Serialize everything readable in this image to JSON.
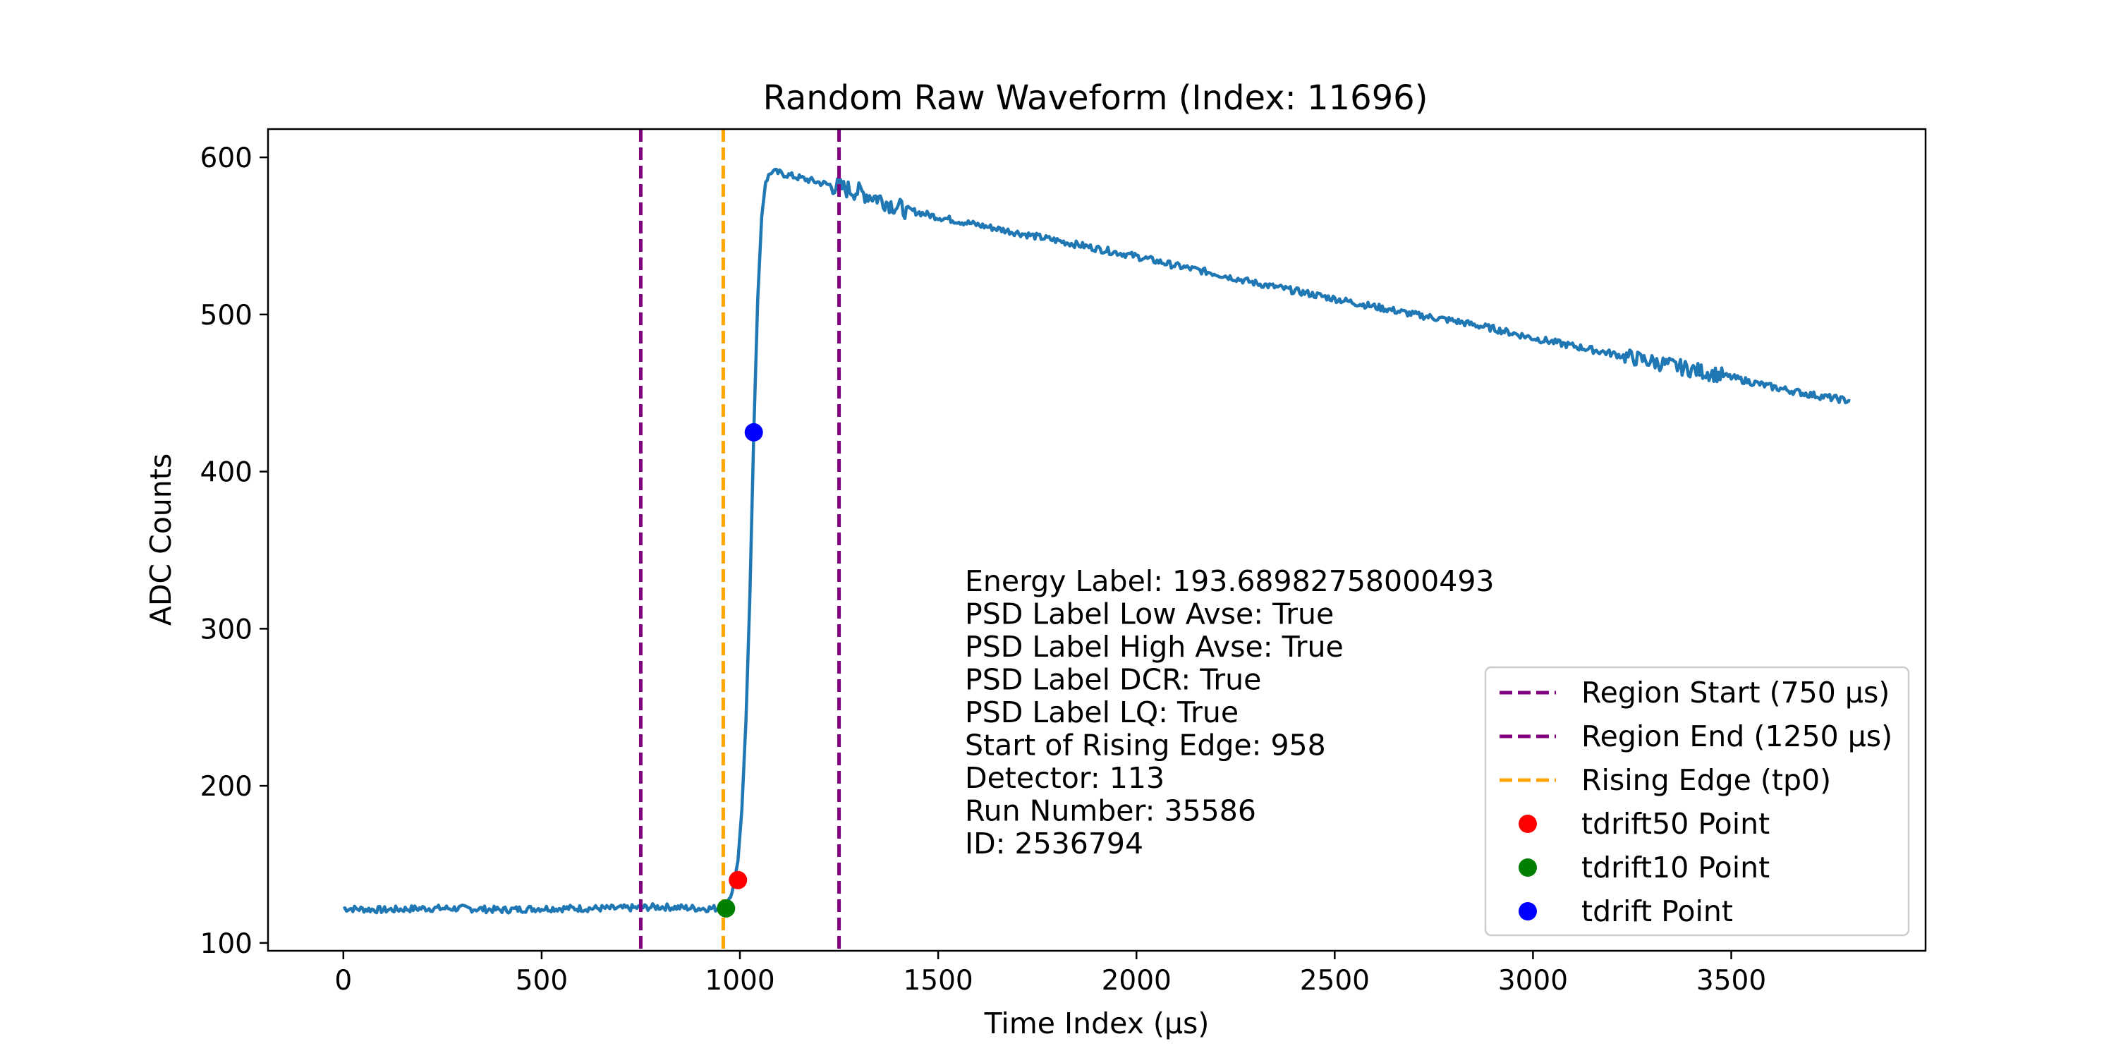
{
  "chart_data": {
    "type": "line",
    "title": "Random Raw Waveform (Index: 11696)",
    "xlabel": "Time Index (µs)",
    "ylabel": "ADC Counts",
    "xlim": [
      -190,
      3990
    ],
    "ylim": [
      95,
      618
    ],
    "x_ticks": [
      "0",
      "500",
      "1000",
      "1500",
      "2000",
      "2500",
      "3000",
      "3500"
    ],
    "x_tick_values": [
      0,
      500,
      1000,
      1500,
      2000,
      2500,
      3000,
      3500
    ],
    "y_ticks": [
      "100",
      "200",
      "300",
      "400",
      "500",
      "600"
    ],
    "y_tick_values": [
      100,
      200,
      300,
      400,
      500,
      600
    ],
    "grid": false,
    "legend_position": "lower right",
    "colors": {
      "waveform": "#1f77b4",
      "region": "#800080",
      "rising_edge": "#ffa500",
      "tdrift50": "#ff0000",
      "tdrift10": "#008000",
      "tdrift": "#0000ff"
    },
    "series": [
      {
        "name": "",
        "x": [
          0,
          100,
          200,
          300,
          400,
          500,
          600,
          700,
          800,
          900,
          950,
          965,
          980,
          995,
          1005,
          1015,
          1025,
          1035,
          1045,
          1055,
          1065,
          1080,
          1100,
          1150,
          1200,
          1250,
          1300,
          1350,
          1400,
          1500,
          1600,
          1700,
          1800,
          1900,
          2000,
          2100,
          2200,
          2300,
          2400,
          2500,
          2600,
          2700,
          2800,
          2900,
          3000,
          3100,
          3200,
          3300,
          3400,
          3500,
          3600,
          3700,
          3800
        ],
        "y": [
          122,
          121,
          122,
          122,
          121,
          122,
          122,
          122,
          123,
          122,
          122,
          124,
          132,
          152,
          185,
          240,
          320,
          425,
          510,
          562,
          585,
          591,
          590,
          587,
          584,
          581,
          578,
          574,
          568,
          562,
          557,
          552,
          547,
          542,
          537,
          531,
          526,
          520,
          515,
          510,
          505,
          500,
          496,
          491,
          485,
          480,
          475,
          470,
          465,
          460,
          454,
          449,
          445
        ]
      }
    ],
    "vlines": [
      {
        "x": 750,
        "label": "Region Start (750 µs)",
        "color": "#800080"
      },
      {
        "x": 1250,
        "label": "Region End (1250 µs)",
        "color": "#800080"
      },
      {
        "x": 958,
        "label": "Rising Edge (tp0)",
        "color": "#ffa500"
      }
    ],
    "points": [
      {
        "x": 995,
        "y": 140,
        "label": "tdrift50 Point",
        "color": "#ff0000"
      },
      {
        "x": 965,
        "y": 122,
        "label": "tdrift10 Point",
        "color": "#008000"
      },
      {
        "x": 1035,
        "y": 425,
        "label": "tdrift Point",
        "color": "#0000ff"
      }
    ],
    "annotation_lines": [
      "Energy Label: 193.68982758000493",
      "PSD Label Low Avse: True",
      "PSD Label High Avse: True",
      "PSD Label DCR: True",
      "PSD Label LQ: True",
      "Start of Rising Edge: 958",
      "Detector: 113",
      "Run Number: 35586",
      "ID: 2536794"
    ],
    "legend": [
      {
        "label": "Region Start (750 µs)",
        "kind": "dashed",
        "color": "#800080"
      },
      {
        "label": "Region End (1250 µs)",
        "kind": "dashed",
        "color": "#800080"
      },
      {
        "label": "Rising Edge (tp0)",
        "kind": "dashed",
        "color": "#ffa500"
      },
      {
        "label": "tdrift50 Point",
        "kind": "marker",
        "color": "#ff0000"
      },
      {
        "label": "tdrift10 Point",
        "kind": "marker",
        "color": "#008000"
      },
      {
        "label": "tdrift Point",
        "kind": "marker",
        "color": "#0000ff"
      }
    ]
  }
}
